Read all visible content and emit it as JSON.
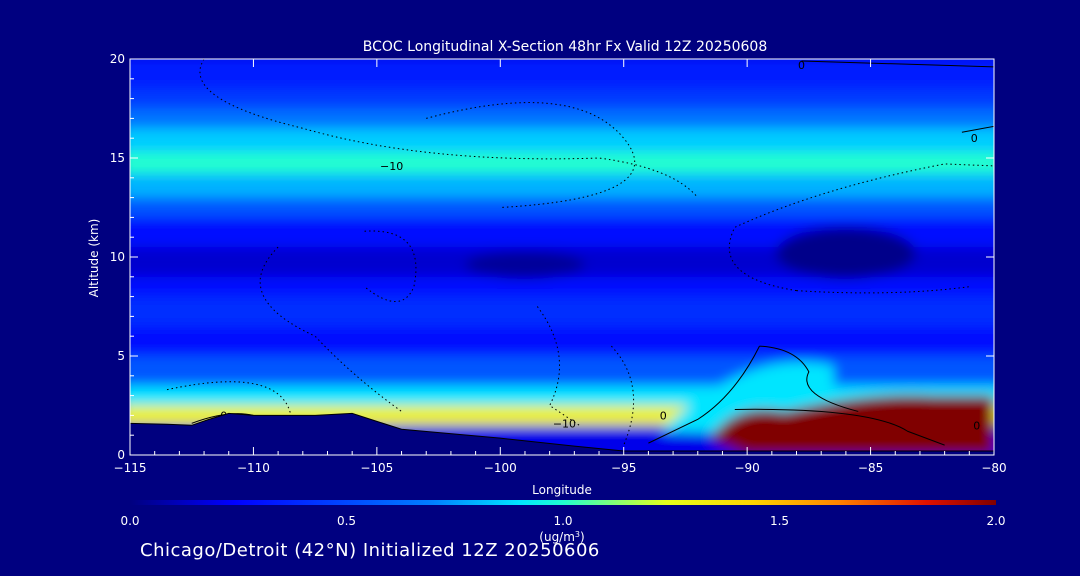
{
  "chart_data": {
    "type": "heatmap",
    "title": "BCOC Longitudinal X-Section 48hr  Fx Valid 12Z 20250608",
    "subtitle": "Chicago/Detroit (42°N) Initialized 12Z 20250606",
    "xlabel": "Longitude",
    "ylabel": "Altitude (km)",
    "xlim": [
      -115,
      -80
    ],
    "ylim": [
      0,
      20
    ],
    "x_ticks": [
      -115,
      -110,
      -105,
      -100,
      -95,
      -90,
      -85,
      -80
    ],
    "x_tick_labels": [
      "−115",
      "−110",
      "−105",
      "−100",
      "−95",
      "−90",
      "−85",
      "−80"
    ],
    "y_ticks": [
      0,
      5,
      10,
      15,
      20
    ],
    "y_tick_labels": [
      "0",
      "5",
      "10",
      "15",
      "20"
    ],
    "colorbar": {
      "min": 0.0,
      "max": 2.0,
      "tick_values": [
        0.0,
        0.5,
        1.0,
        1.5,
        2.0
      ],
      "tick_labels": [
        "0.0",
        "0.5",
        "1.0",
        "1.5",
        "2.0"
      ],
      "units_label": "(ug/m",
      "units_exp": "3",
      "units_close": ")"
    },
    "contour_labels": [
      {
        "text": "0",
        "x": -87.8,
        "y": 19.7
      },
      {
        "text": "0",
        "x": -80.8,
        "y": 16.0
      },
      {
        "text": "−10",
        "x": -104.4,
        "y": 14.6
      },
      {
        "text": "0",
        "x": -111.2,
        "y": 2.0
      },
      {
        "text": "0",
        "x": -93.4,
        "y": 2.0
      },
      {
        "text": "−10",
        "x": -97.4,
        "y": 1.6
      },
      {
        "text": "0",
        "x": -80.7,
        "y": 1.5
      }
    ],
    "terrain_km": [
      {
        "lon": -115,
        "alt": 1.6
      },
      {
        "lon": -113.5,
        "alt": 1.55
      },
      {
        "lon": -112.5,
        "alt": 1.5
      },
      {
        "lon": -111.8,
        "alt": 1.8
      },
      {
        "lon": -111.0,
        "alt": 2.1
      },
      {
        "lon": -110.0,
        "alt": 2.0
      },
      {
        "lon": -107.5,
        "alt": 2.0
      },
      {
        "lon": -106.0,
        "alt": 2.1
      },
      {
        "lon": -105.0,
        "alt": 1.7
      },
      {
        "lon": -104.0,
        "alt": 1.3
      },
      {
        "lon": -100,
        "alt": 0.85
      },
      {
        "lon": -97,
        "alt": 0.45
      },
      {
        "lon": -95,
        "alt": 0.2
      },
      {
        "lon": -93.5,
        "alt": 0.2
      },
      {
        "lon": -92.5,
        "alt": 0.2
      },
      {
        "lon": -80,
        "alt": 0.2
      }
    ],
    "bands": [
      {
        "lon0": -115,
        "lon1": -80,
        "alt0": 18.5,
        "alt1": 20,
        "value": 0.35
      },
      {
        "lon0": -115,
        "alt0": 17.5,
        "alt1": 18.5,
        "value": 0.45
      },
      {
        "lon0": -115,
        "alt0": 16.5,
        "alt1": 17.5,
        "value": 0.65
      },
      {
        "lon0": -115,
        "alt0": 15.3,
        "alt1": 16.5,
        "value": 0.85
      },
      {
        "lon0": -115,
        "alt0": 14.2,
        "alt1": 15.3,
        "value": 1.0
      },
      {
        "lon0": -115,
        "alt0": 13.0,
        "alt1": 14.2,
        "value": 0.8
      },
      {
        "lon0": -115,
        "alt0": 12.0,
        "alt1": 13.0,
        "value": 0.55
      },
      {
        "lon0": -115,
        "alt0": 10.5,
        "alt1": 12.0,
        "value": 0.3
      },
      {
        "lon0": -115,
        "alt0": 9.0,
        "alt1": 10.5,
        "value": 0.15
      },
      {
        "lon0": -115,
        "alt0": 8.0,
        "alt1": 9.0,
        "value": 0.3
      },
      {
        "lon0": -115,
        "alt0": 6.5,
        "alt1": 8.0,
        "value": 0.4
      },
      {
        "lon0": -115,
        "alt0": 5.0,
        "alt1": 6.5,
        "value": 0.3
      },
      {
        "lon0": -115,
        "alt0": 3.5,
        "alt1": 5.0,
        "value": 0.55
      },
      {
        "lon0": -115,
        "alt0": 2.5,
        "alt1": 3.5,
        "value": 0.9
      },
      {
        "lon0": -115,
        "alt0": 1.5,
        "alt1": 2.5,
        "value": 1.3
      }
    ],
    "high_region": {
      "lon0": -90,
      "lon1": -80,
      "alt_top": 3.0,
      "value": 2.0
    },
    "polluted_plume": {
      "lon0": -93.5,
      "lon1": -86.5,
      "alt0": 1.0,
      "alt1": 4.5,
      "value": 0.9
    }
  }
}
